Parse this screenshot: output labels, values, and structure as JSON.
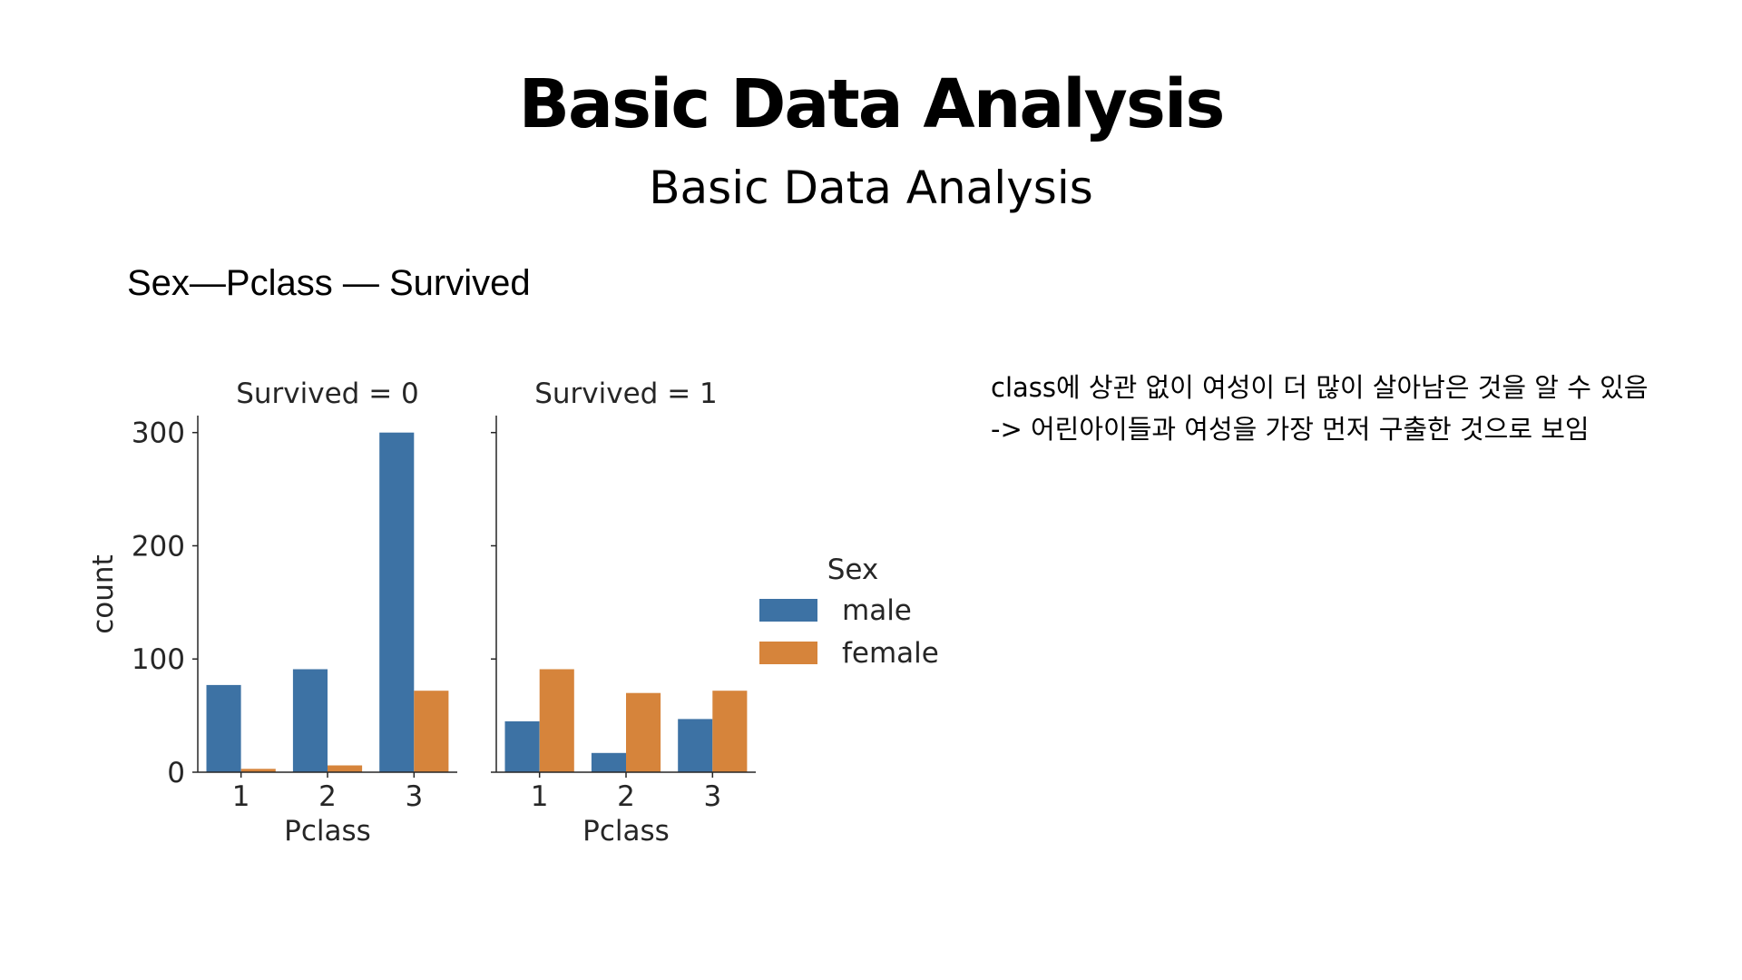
{
  "slide": {
    "title": "Basic Data Analysis",
    "subtitle": "Basic Data Analysis",
    "section_heading": "Sex—Pclass — Survived",
    "notes": [
      "class에 상관 없이 여성이 더 많이 살아남은 것을 알 수 있음",
      "-> 어린아이들과 여성을 가장 먼저 구출한 것으로 보임"
    ]
  },
  "chart_data": {
    "type": "bar",
    "ylabel": "count",
    "ylim": [
      0,
      315
    ],
    "yticks": [
      0,
      100,
      200,
      300
    ],
    "legend": {
      "title": "Sex",
      "placement": "right",
      "entries": [
        {
          "name": "male",
          "color": "#3d72a4"
        },
        {
          "name": "female",
          "color": "#d6843b"
        }
      ]
    },
    "panels": [
      {
        "title": "Survived = 0",
        "xlabel": "Pclass",
        "categories": [
          "1",
          "2",
          "3"
        ],
        "series": [
          {
            "name": "male",
            "values": [
              77,
              91,
              300
            ]
          },
          {
            "name": "female",
            "values": [
              3,
              6,
              72
            ]
          }
        ]
      },
      {
        "title": "Survived = 1",
        "xlabel": "Pclass",
        "categories": [
          "1",
          "2",
          "3"
        ],
        "series": [
          {
            "name": "male",
            "values": [
              45,
              17,
              47
            ]
          },
          {
            "name": "female",
            "values": [
              91,
              70,
              72
            ]
          }
        ]
      }
    ]
  }
}
